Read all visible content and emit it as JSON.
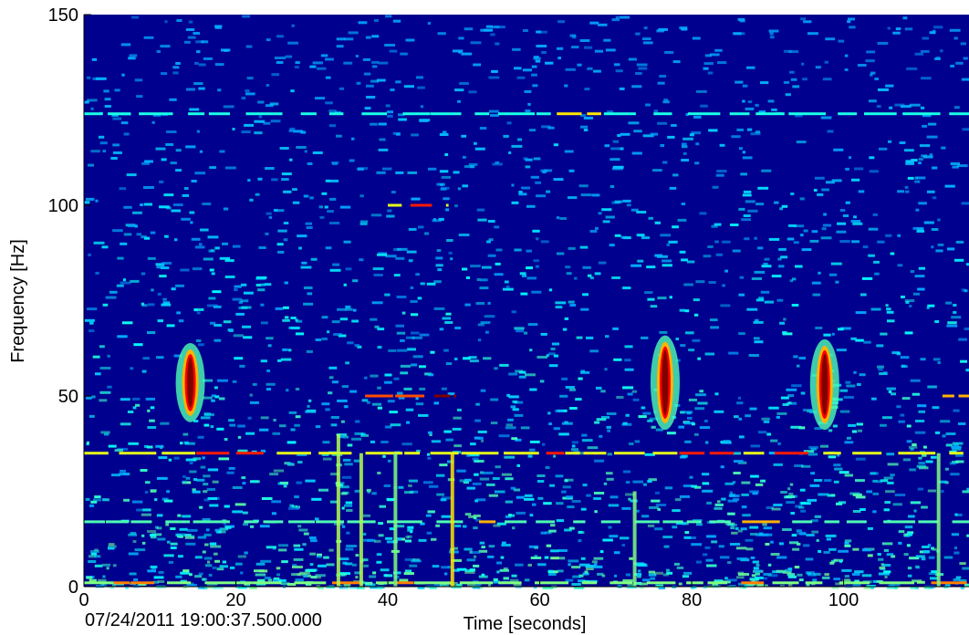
{
  "chart_data": {
    "type": "heatmap",
    "subtype": "spectrogram",
    "colormap": "jet",
    "background_color": "#00008f",
    "xlabel": "Time [seconds]",
    "ylabel": "Frequency [Hz]",
    "x_ticks": [
      "0",
      "20",
      "40",
      "60",
      "80",
      "100"
    ],
    "x_tick_values": [
      0,
      20,
      40,
      60,
      80,
      100
    ],
    "y_ticks": [
      "0",
      "50",
      "100",
      "150"
    ],
    "y_tick_values": [
      0,
      50,
      100,
      150
    ],
    "xlim": [
      0,
      116.5
    ],
    "ylim": [
      0,
      150
    ],
    "start_timestamp": "07/24/2011 19:00:37.500.000",
    "grid": false,
    "calls": [
      {
        "t": 14.0,
        "f_low": 46,
        "f_high": 61,
        "peak_level": 1.0
      },
      {
        "t": 76.5,
        "f_low": 44,
        "f_high": 63,
        "peak_level": 1.0
      },
      {
        "t": 97.5,
        "f_low": 44,
        "f_high": 62,
        "peak_level": 1.0
      }
    ],
    "tonal_lines": [
      {
        "f": 35,
        "t_start": 0,
        "t_end": 116.5,
        "level": 0.6
      },
      {
        "f": 17,
        "t_start": 0,
        "t_end": 116.5,
        "level": 0.45
      },
      {
        "f": 50,
        "t_start": 37,
        "t_end": 49,
        "level": 0.8
      },
      {
        "f": 50,
        "t_start": 113,
        "t_end": 116.5,
        "level": 0.7
      },
      {
        "f": 100,
        "t_start": 40,
        "t_end": 48,
        "level": 0.6
      },
      {
        "f": 124,
        "t_start": 0,
        "t_end": 116.5,
        "level": 0.4
      },
      {
        "f": 1,
        "t_start": 0,
        "t_end": 116.5,
        "level": 0.5
      }
    ],
    "broadband_transients": [
      {
        "t": 33.5,
        "f_high": 40,
        "level": 0.55
      },
      {
        "t": 36.5,
        "f_high": 35,
        "level": 0.55
      },
      {
        "t": 41.0,
        "f_high": 35,
        "level": 0.5
      },
      {
        "t": 48.5,
        "f_high": 35,
        "level": 0.65
      },
      {
        "t": 72.5,
        "f_high": 25,
        "level": 0.5
      },
      {
        "t": 112.5,
        "f_high": 35,
        "level": 0.5
      }
    ]
  }
}
